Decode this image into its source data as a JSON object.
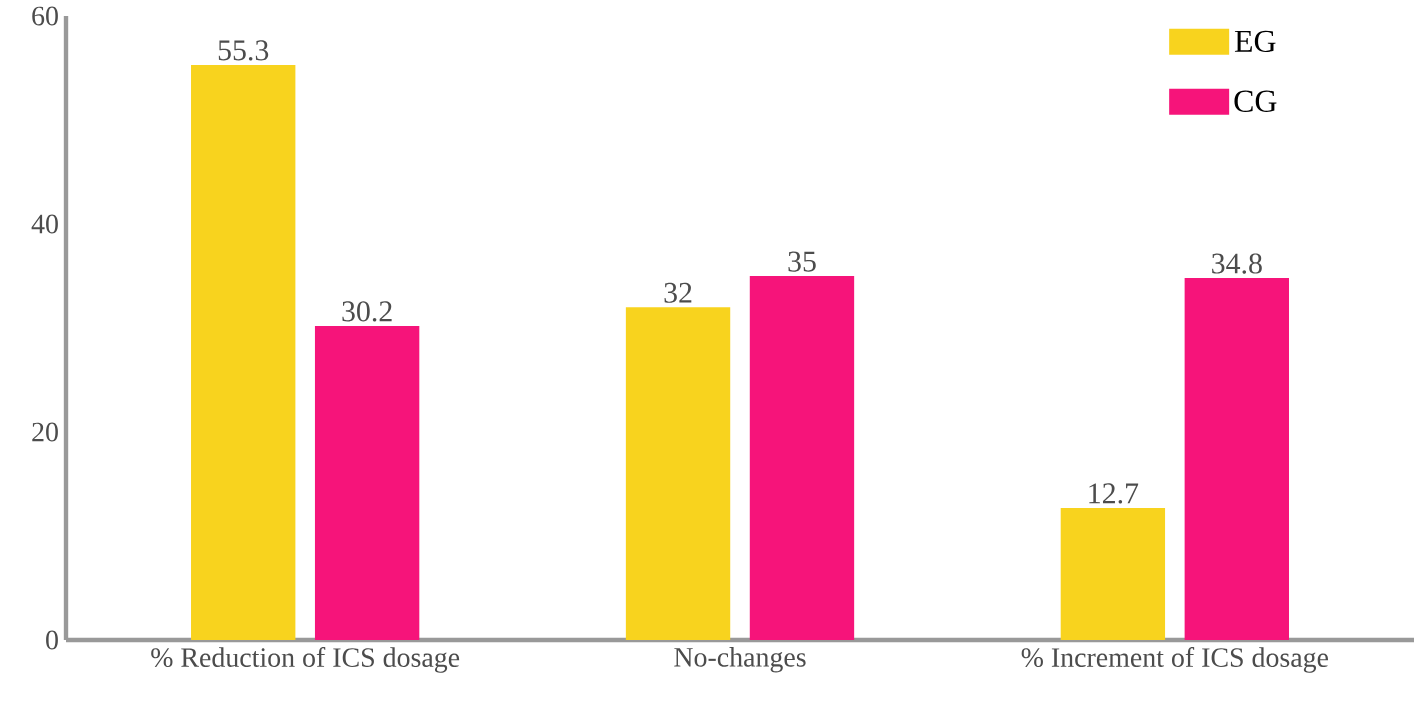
{
  "chart_data": {
    "type": "bar",
    "categories": [
      "% Reduction of ICS dosage",
      "No-changes",
      "% Increment of ICS dosage"
    ],
    "series": [
      {
        "name": "EG",
        "color": "#f8d31e",
        "values": [
          55.3,
          32,
          12.7
        ]
      },
      {
        "name": "CG",
        "color": "#f6147a",
        "values": [
          30.2,
          35,
          34.8
        ]
      }
    ],
    "ylim": [
      0,
      60
    ],
    "yticks": [
      0,
      20,
      40,
      60
    ],
    "grid": false,
    "legend": "top right",
    "data_labels": true
  }
}
